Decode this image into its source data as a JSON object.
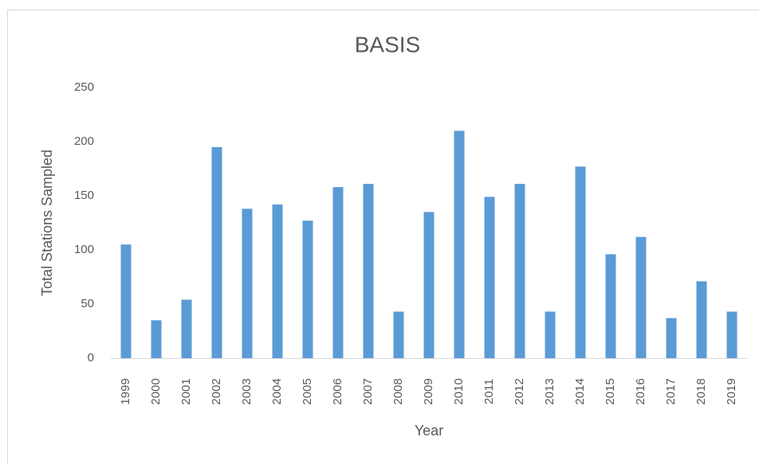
{
  "chart_data": {
    "type": "bar",
    "title": "BASIS",
    "x_label": "Year",
    "y_label": "Total Stations Sampled",
    "categories": [
      "1999",
      "2000",
      "2001",
      "2002",
      "2003",
      "2004",
      "2005",
      "2006",
      "2007",
      "2008",
      "2009",
      "2010",
      "2011",
      "2012",
      "2013",
      "2014",
      "2015",
      "2016",
      "2017",
      "2018",
      "2019"
    ],
    "values": [
      105,
      35,
      54,
      195,
      138,
      142,
      127,
      158,
      161,
      43,
      135,
      210,
      149,
      161,
      43,
      177,
      96,
      112,
      37,
      71,
      43
    ],
    "color": "#5b9bd5",
    "ylim": [
      0,
      250
    ],
    "yticks": [
      0,
      50,
      100,
      150,
      200,
      250
    ],
    "grid": false
  }
}
